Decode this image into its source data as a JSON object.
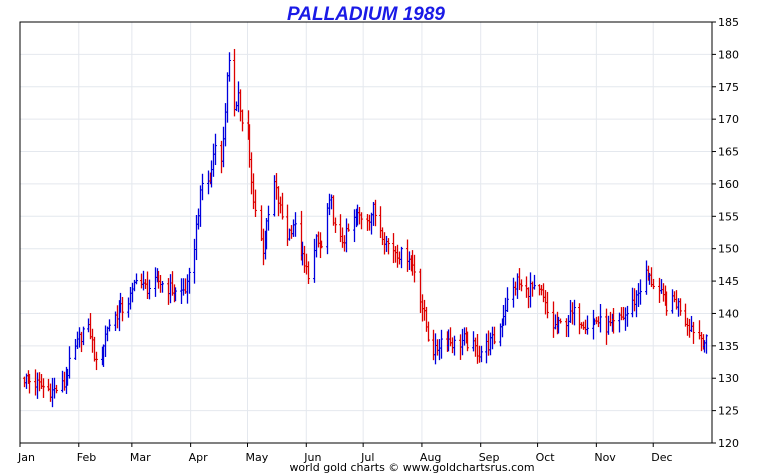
{
  "chart_data": {
    "type": "ohlc",
    "title": "PALLADIUM 1989",
    "footer": "world gold charts © www.goldchartsrus.com",
    "xlabel": "",
    "ylabel": "",
    "ylim": [
      120,
      185
    ],
    "y_ticks": [
      120,
      125,
      130,
      135,
      140,
      145,
      150,
      155,
      160,
      165,
      170,
      175,
      180,
      185
    ],
    "y_axis_side": "right",
    "grid": true,
    "x_ticks": [
      "Jan",
      "Feb",
      "Mar",
      "Apr",
      "May",
      "Jun",
      "Jul",
      "Aug",
      "Sep",
      "Oct",
      "Nov",
      "Dec"
    ],
    "colors": {
      "up": "#0000dd",
      "down": "#dd0000",
      "title": "#1a1ae6",
      "grid": "#e4e8ee"
    },
    "price_path": [
      [
        "1989-01-03",
        130.0
      ],
      [
        "1989-01-10",
        129.0
      ],
      [
        "1989-01-18",
        128.0
      ],
      [
        "1989-01-24",
        129.0
      ],
      [
        "1989-01-28",
        133.0
      ],
      [
        "1989-02-01",
        136.0
      ],
      [
        "1989-02-04",
        138.0
      ],
      [
        "1989-02-07",
        137.0
      ],
      [
        "1989-02-10",
        132.0
      ],
      [
        "1989-02-13",
        134.0
      ],
      [
        "1989-02-16",
        138.0
      ],
      [
        "1989-02-21",
        140.0
      ],
      [
        "1989-02-25",
        141.0
      ],
      [
        "1989-03-01",
        143.0
      ],
      [
        "1989-03-03",
        146.0
      ],
      [
        "1989-03-07",
        144.0
      ],
      [
        "1989-03-11",
        144.0
      ],
      [
        "1989-03-15",
        145.0
      ],
      [
        "1989-03-20",
        144.0
      ],
      [
        "1989-03-25",
        143.0
      ],
      [
        "1989-03-30",
        144.0
      ],
      [
        "1989-04-02",
        148.0
      ],
      [
        "1989-04-05",
        156.0
      ],
      [
        "1989-04-08",
        162.0
      ],
      [
        "1989-04-11",
        160.0
      ],
      [
        "1989-04-14",
        167.0
      ],
      [
        "1989-04-17",
        163.0
      ],
      [
        "1989-04-20",
        176.0
      ],
      [
        "1989-04-22",
        180.0
      ],
      [
        "1989-04-24",
        172.0
      ],
      [
        "1989-04-26",
        174.0
      ],
      [
        "1989-04-28",
        169.0
      ],
      [
        "1989-05-01",
        167.0
      ],
      [
        "1989-05-03",
        160.0
      ],
      [
        "1989-05-06",
        154.0
      ],
      [
        "1989-05-09",
        150.0
      ],
      [
        "1989-05-12",
        155.0
      ],
      [
        "1989-05-15",
        160.0
      ],
      [
        "1989-05-18",
        156.0
      ],
      [
        "1989-05-22",
        152.0
      ],
      [
        "1989-05-25",
        154.0
      ],
      [
        "1989-05-28",
        151.0
      ],
      [
        "1989-05-31",
        147.0
      ],
      [
        "1989-06-03",
        146.0
      ],
      [
        "1989-06-06",
        151.0
      ],
      [
        "1989-06-09",
        150.0
      ],
      [
        "1989-06-12",
        156.0
      ],
      [
        "1989-06-14",
        157.0
      ],
      [
        "1989-06-16",
        153.0
      ],
      [
        "1989-06-19",
        151.0
      ],
      [
        "1989-06-22",
        152.0
      ],
      [
        "1989-06-25",
        154.0
      ],
      [
        "1989-06-28",
        155.0
      ],
      [
        "1989-07-01",
        155.0
      ],
      [
        "1989-07-04",
        155.0
      ],
      [
        "1989-07-06",
        156.0
      ],
      [
        "1989-07-09",
        154.0
      ],
      [
        "1989-07-13",
        151.0
      ],
      [
        "1989-07-17",
        150.0
      ],
      [
        "1989-07-21",
        149.0
      ],
      [
        "1989-07-25",
        149.0
      ],
      [
        "1989-07-29",
        146.0
      ],
      [
        "1989-08-01",
        141.0
      ],
      [
        "1989-08-03",
        138.0
      ],
      [
        "1989-08-05",
        135.0
      ],
      [
        "1989-08-08",
        134.0
      ],
      [
        "1989-08-11",
        136.0
      ],
      [
        "1989-08-15",
        136.0
      ],
      [
        "1989-08-19",
        135.0
      ],
      [
        "1989-08-23",
        136.0
      ],
      [
        "1989-08-27",
        135.0
      ],
      [
        "1989-08-31",
        134.0
      ],
      [
        "1989-09-04",
        135.0
      ],
      [
        "1989-09-08",
        136.0
      ],
      [
        "1989-09-11",
        138.0
      ],
      [
        "1989-09-14",
        141.0
      ],
      [
        "1989-09-17",
        143.0
      ],
      [
        "1989-09-20",
        145.0
      ],
      [
        "1989-09-24",
        143.0
      ],
      [
        "1989-09-27",
        144.0
      ],
      [
        "1989-09-30",
        143.0
      ],
      [
        "1989-10-03",
        143.0
      ],
      [
        "1989-10-06",
        140.0
      ],
      [
        "1989-10-09",
        138.0
      ],
      [
        "1989-10-12",
        138.0
      ],
      [
        "1989-10-16",
        139.0
      ],
      [
        "1989-10-20",
        140.0
      ],
      [
        "1989-10-24",
        139.0
      ],
      [
        "1989-10-28",
        138.0
      ],
      [
        "1989-11-01",
        139.0
      ],
      [
        "1989-11-05",
        138.0
      ],
      [
        "1989-11-09",
        138.0
      ],
      [
        "1989-11-13",
        139.0
      ],
      [
        "1989-11-17",
        140.0
      ],
      [
        "1989-11-21",
        142.0
      ],
      [
        "1989-11-24",
        144.0
      ],
      [
        "1989-11-27",
        146.0
      ],
      [
        "1989-11-30",
        145.0
      ],
      [
        "1989-12-03",
        144.0
      ],
      [
        "1989-12-06",
        142.0
      ],
      [
        "1989-12-09",
        141.0
      ],
      [
        "1989-12-12",
        142.0
      ],
      [
        "1989-12-15",
        141.0
      ],
      [
        "1989-12-18",
        139.0
      ],
      [
        "1989-12-21",
        138.0
      ],
      [
        "1989-12-24",
        137.0
      ],
      [
        "1989-12-27",
        136.0
      ],
      [
        "1989-12-29",
        135.5
      ]
    ]
  }
}
